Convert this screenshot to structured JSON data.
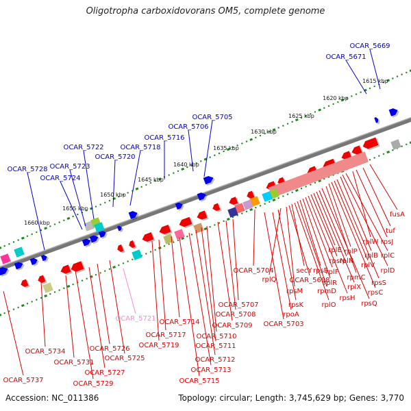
{
  "title": "Oligotropha carboxidovorans OM5, complete genome",
  "footer": {
    "accession": "Accession: NC_011386",
    "summary": "Topology: circular; Length: 3,745,629 bp; Genes: 3,770"
  },
  "scale": {
    "ticks": [
      "1615 kbp",
      "1620 kbp",
      "1625 kbp",
      "1630 kbp",
      "1635 kbp",
      "1640 kbp",
      "1645 kbp",
      "1650 kbp",
      "1655 kbp",
      "1660 kbp"
    ]
  },
  "colors": {
    "forward_label": "#0000cc",
    "reverse_label": "#dd0000",
    "rna_label": "#ff88cc",
    "axis": "#888888",
    "tick": "#1a8a1a"
  },
  "labels_blue": [
    "OCAR_5669",
    "OCAR_5671",
    "OCAR_5705",
    "OCAR_5706",
    "OCAR_5716",
    "OCAR_5718",
    "OCAR_5720",
    "OCAR_5722",
    "OCAR_5723",
    "OCAR_5724",
    "OCAR_5728"
  ],
  "labels_red": [
    "fusA",
    "tuf",
    "rpsJ",
    "rplW",
    "rplC",
    "rplD",
    "rplB",
    "rpsS",
    "rplV",
    "rpsC",
    "rplP",
    "rpmC",
    "rpsQ",
    "rplN",
    "rplX",
    "rplE",
    "rpsN",
    "rpsH",
    "rplF",
    "rplR",
    "rpsE",
    "rpmD",
    "rplO",
    "secY",
    "OCAR_5698",
    "rpsM",
    "rplQ",
    "rpsK",
    "OCAR_5704",
    "rpoA",
    "OCAR_5703",
    "OCAR_5707",
    "OCAR_5708",
    "OCAR_5709",
    "OCAR_5710",
    "OCAR_5711",
    "OCAR_5712",
    "OCAR_5713",
    "OCAR_5714",
    "OCAR_5715",
    "OCAR_5717",
    "OCAR_5719",
    "OCAR_5725",
    "OCAR_5726",
    "OCAR_5727",
    "OCAR_5729",
    "OCAR_5731",
    "OCAR_5734",
    "OCAR_5737"
  ],
  "labels_pink": [
    "OCAR_5721"
  ]
}
